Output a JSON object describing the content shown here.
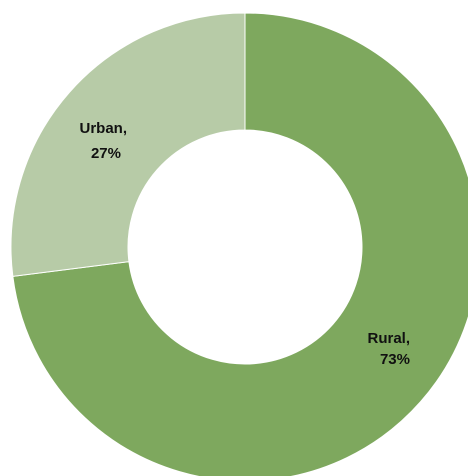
{
  "chart_data": {
    "type": "pie",
    "variant": "donut",
    "title": "",
    "categories": [
      "Rural",
      "Urban"
    ],
    "values": [
      73,
      27
    ],
    "unit": "%",
    "labels": [
      {
        "name": "Rural,",
        "value": "73%"
      },
      {
        "name": "Urban,",
        "value": "27%"
      }
    ],
    "colors": [
      "#7ea85e",
      "#b7cba7"
    ],
    "start": "12 o'clock",
    "direction": "clockwise",
    "legend": "none"
  }
}
